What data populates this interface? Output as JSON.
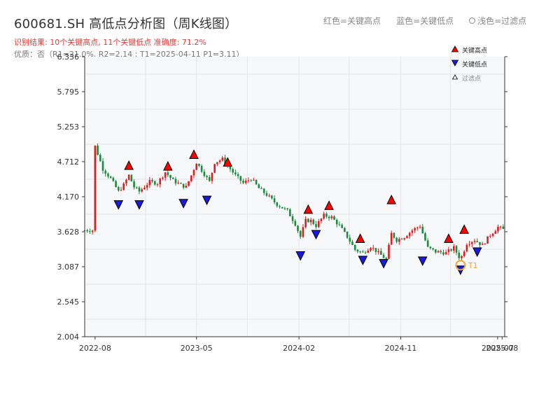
{
  "header": {
    "title": "600681.SH 高低点分析图（周K线图）",
    "subtitle_result": "识别结果: 10个关键高点, 11个关键低点  准确度: 71.2%",
    "subtitle_quality": "优质：否（R1=21.0%, R2=2.14 ; T1=2025-04-11 P1=3.11）"
  },
  "top_legend": {
    "red": "红色=关键高点",
    "blue": "蓝色=关键低点",
    "light": "浅色=过滤点"
  },
  "legend": {
    "high": "关键高点",
    "low": "关键低点",
    "filtered": "过滤点"
  },
  "colors": {
    "up": "#e31a1c",
    "down": "#1b8a3a",
    "high_marker": "#ff0000",
    "low_marker": "#1a1adc",
    "t1_circle": "#f5a623",
    "plot_bg": "#f7f8fa",
    "grid": "#e3e5e8"
  },
  "chart_data": {
    "type": "candlestick",
    "x_axis": {
      "tick_labels": [
        "2022-08",
        "2023-05",
        "2024-02",
        "2024-11",
        "2025-07",
        "2025-08"
      ],
      "tick_dates": [
        "2022-08-01",
        "2023-05-01",
        "2024-02-01",
        "2024-11-01",
        "2025-07-20",
        "2025-08-01"
      ]
    },
    "y_axis": {
      "ticks": [
        2.004,
        2.545,
        3.087,
        3.628,
        4.17,
        4.712,
        5.253,
        5.795,
        6.336
      ],
      "range": [
        2.004,
        6.336
      ]
    },
    "close_path": [
      [
        "2022-08-01",
        4.95
      ],
      [
        "2022-08-22",
        4.6
      ],
      [
        "2022-09-12",
        4.45
      ],
      [
        "2022-10-03",
        4.25
      ],
      [
        "2022-10-17",
        4.35
      ],
      [
        "2022-10-31",
        4.5
      ],
      [
        "2022-11-14",
        4.32
      ],
      [
        "2022-11-28",
        4.25
      ],
      [
        "2022-12-26",
        4.4
      ],
      [
        "2023-01-16",
        4.38
      ],
      [
        "2023-02-06",
        4.55
      ],
      [
        "2023-02-27",
        4.42
      ],
      [
        "2023-03-20",
        4.35
      ],
      [
        "2023-04-03",
        4.32
      ],
      [
        "2023-04-17",
        4.5
      ],
      [
        "2023-05-01",
        4.7
      ],
      [
        "2023-05-22",
        4.52
      ],
      [
        "2023-06-05",
        4.4
      ],
      [
        "2023-06-19",
        4.7
      ],
      [
        "2023-07-10",
        4.75
      ],
      [
        "2023-07-31",
        4.6
      ],
      [
        "2023-08-14",
        4.5
      ],
      [
        "2023-09-04",
        4.38
      ],
      [
        "2023-09-25",
        4.45
      ],
      [
        "2023-10-16",
        4.3
      ],
      [
        "2023-11-06",
        4.2
      ],
      [
        "2023-12-04",
        4.05
      ],
      [
        "2024-01-01",
        3.95
      ],
      [
        "2024-01-22",
        3.75
      ],
      [
        "2024-02-05",
        3.55
      ],
      [
        "2024-02-19",
        3.8
      ],
      [
        "2024-03-04",
        3.8
      ],
      [
        "2024-03-18",
        3.72
      ],
      [
        "2024-04-08",
        3.88
      ],
      [
        "2024-04-29",
        3.85
      ],
      [
        "2024-05-20",
        3.72
      ],
      [
        "2024-06-10",
        3.55
      ],
      [
        "2024-07-01",
        3.35
      ],
      [
        "2024-07-22",
        3.3
      ],
      [
        "2024-08-12",
        3.4
      ],
      [
        "2024-09-02",
        3.3
      ],
      [
        "2024-09-23",
        3.2
      ],
      [
        "2024-10-07",
        3.6
      ],
      [
        "2024-10-21",
        3.5
      ],
      [
        "2024-11-11",
        3.55
      ],
      [
        "2024-12-02",
        3.65
      ],
      [
        "2024-12-23",
        3.72
      ],
      [
        "2025-01-13",
        3.38
      ],
      [
        "2025-02-03",
        3.32
      ],
      [
        "2025-03-03",
        3.3
      ],
      [
        "2025-03-24",
        3.38
      ],
      [
        "2025-04-11",
        3.2
      ],
      [
        "2025-04-28",
        3.45
      ],
      [
        "2025-05-19",
        3.5
      ],
      [
        "2025-06-09",
        3.42
      ],
      [
        "2025-06-30",
        3.58
      ],
      [
        "2025-07-21",
        3.7
      ],
      [
        "2025-08-08",
        3.65
      ]
    ],
    "key_highs": [
      {
        "date": "2022-10-31",
        "price": 4.58
      },
      {
        "date": "2023-02-13",
        "price": 4.57
      },
      {
        "date": "2023-04-24",
        "price": 4.75
      },
      {
        "date": "2023-07-24",
        "price": 4.63
      },
      {
        "date": "2024-02-26",
        "price": 3.9
      },
      {
        "date": "2024-04-22",
        "price": 3.96
      },
      {
        "date": "2024-07-15",
        "price": 3.45
      },
      {
        "date": "2024-10-07",
        "price": 4.05
      },
      {
        "date": "2025-03-10",
        "price": 3.45
      },
      {
        "date": "2025-04-21",
        "price": 3.59
      }
    ],
    "key_lows": [
      {
        "date": "2022-10-03",
        "price": 4.12
      },
      {
        "date": "2022-11-28",
        "price": 4.12
      },
      {
        "date": "2023-03-27",
        "price": 4.14
      },
      {
        "date": "2023-05-29",
        "price": 4.19
      },
      {
        "date": "2024-02-05",
        "price": 3.33
      },
      {
        "date": "2024-03-18",
        "price": 3.66
      },
      {
        "date": "2024-07-22",
        "price": 3.26
      },
      {
        "date": "2024-09-16",
        "price": 3.21
      },
      {
        "date": "2024-12-30",
        "price": 3.25
      },
      {
        "date": "2025-04-11",
        "price": 3.11
      },
      {
        "date": "2025-05-26",
        "price": 3.39
      }
    ],
    "annotation": {
      "label": "T1",
      "date": "2025-04-11",
      "price": 3.11
    },
    "grid": true,
    "legend_position": "top-right"
  }
}
